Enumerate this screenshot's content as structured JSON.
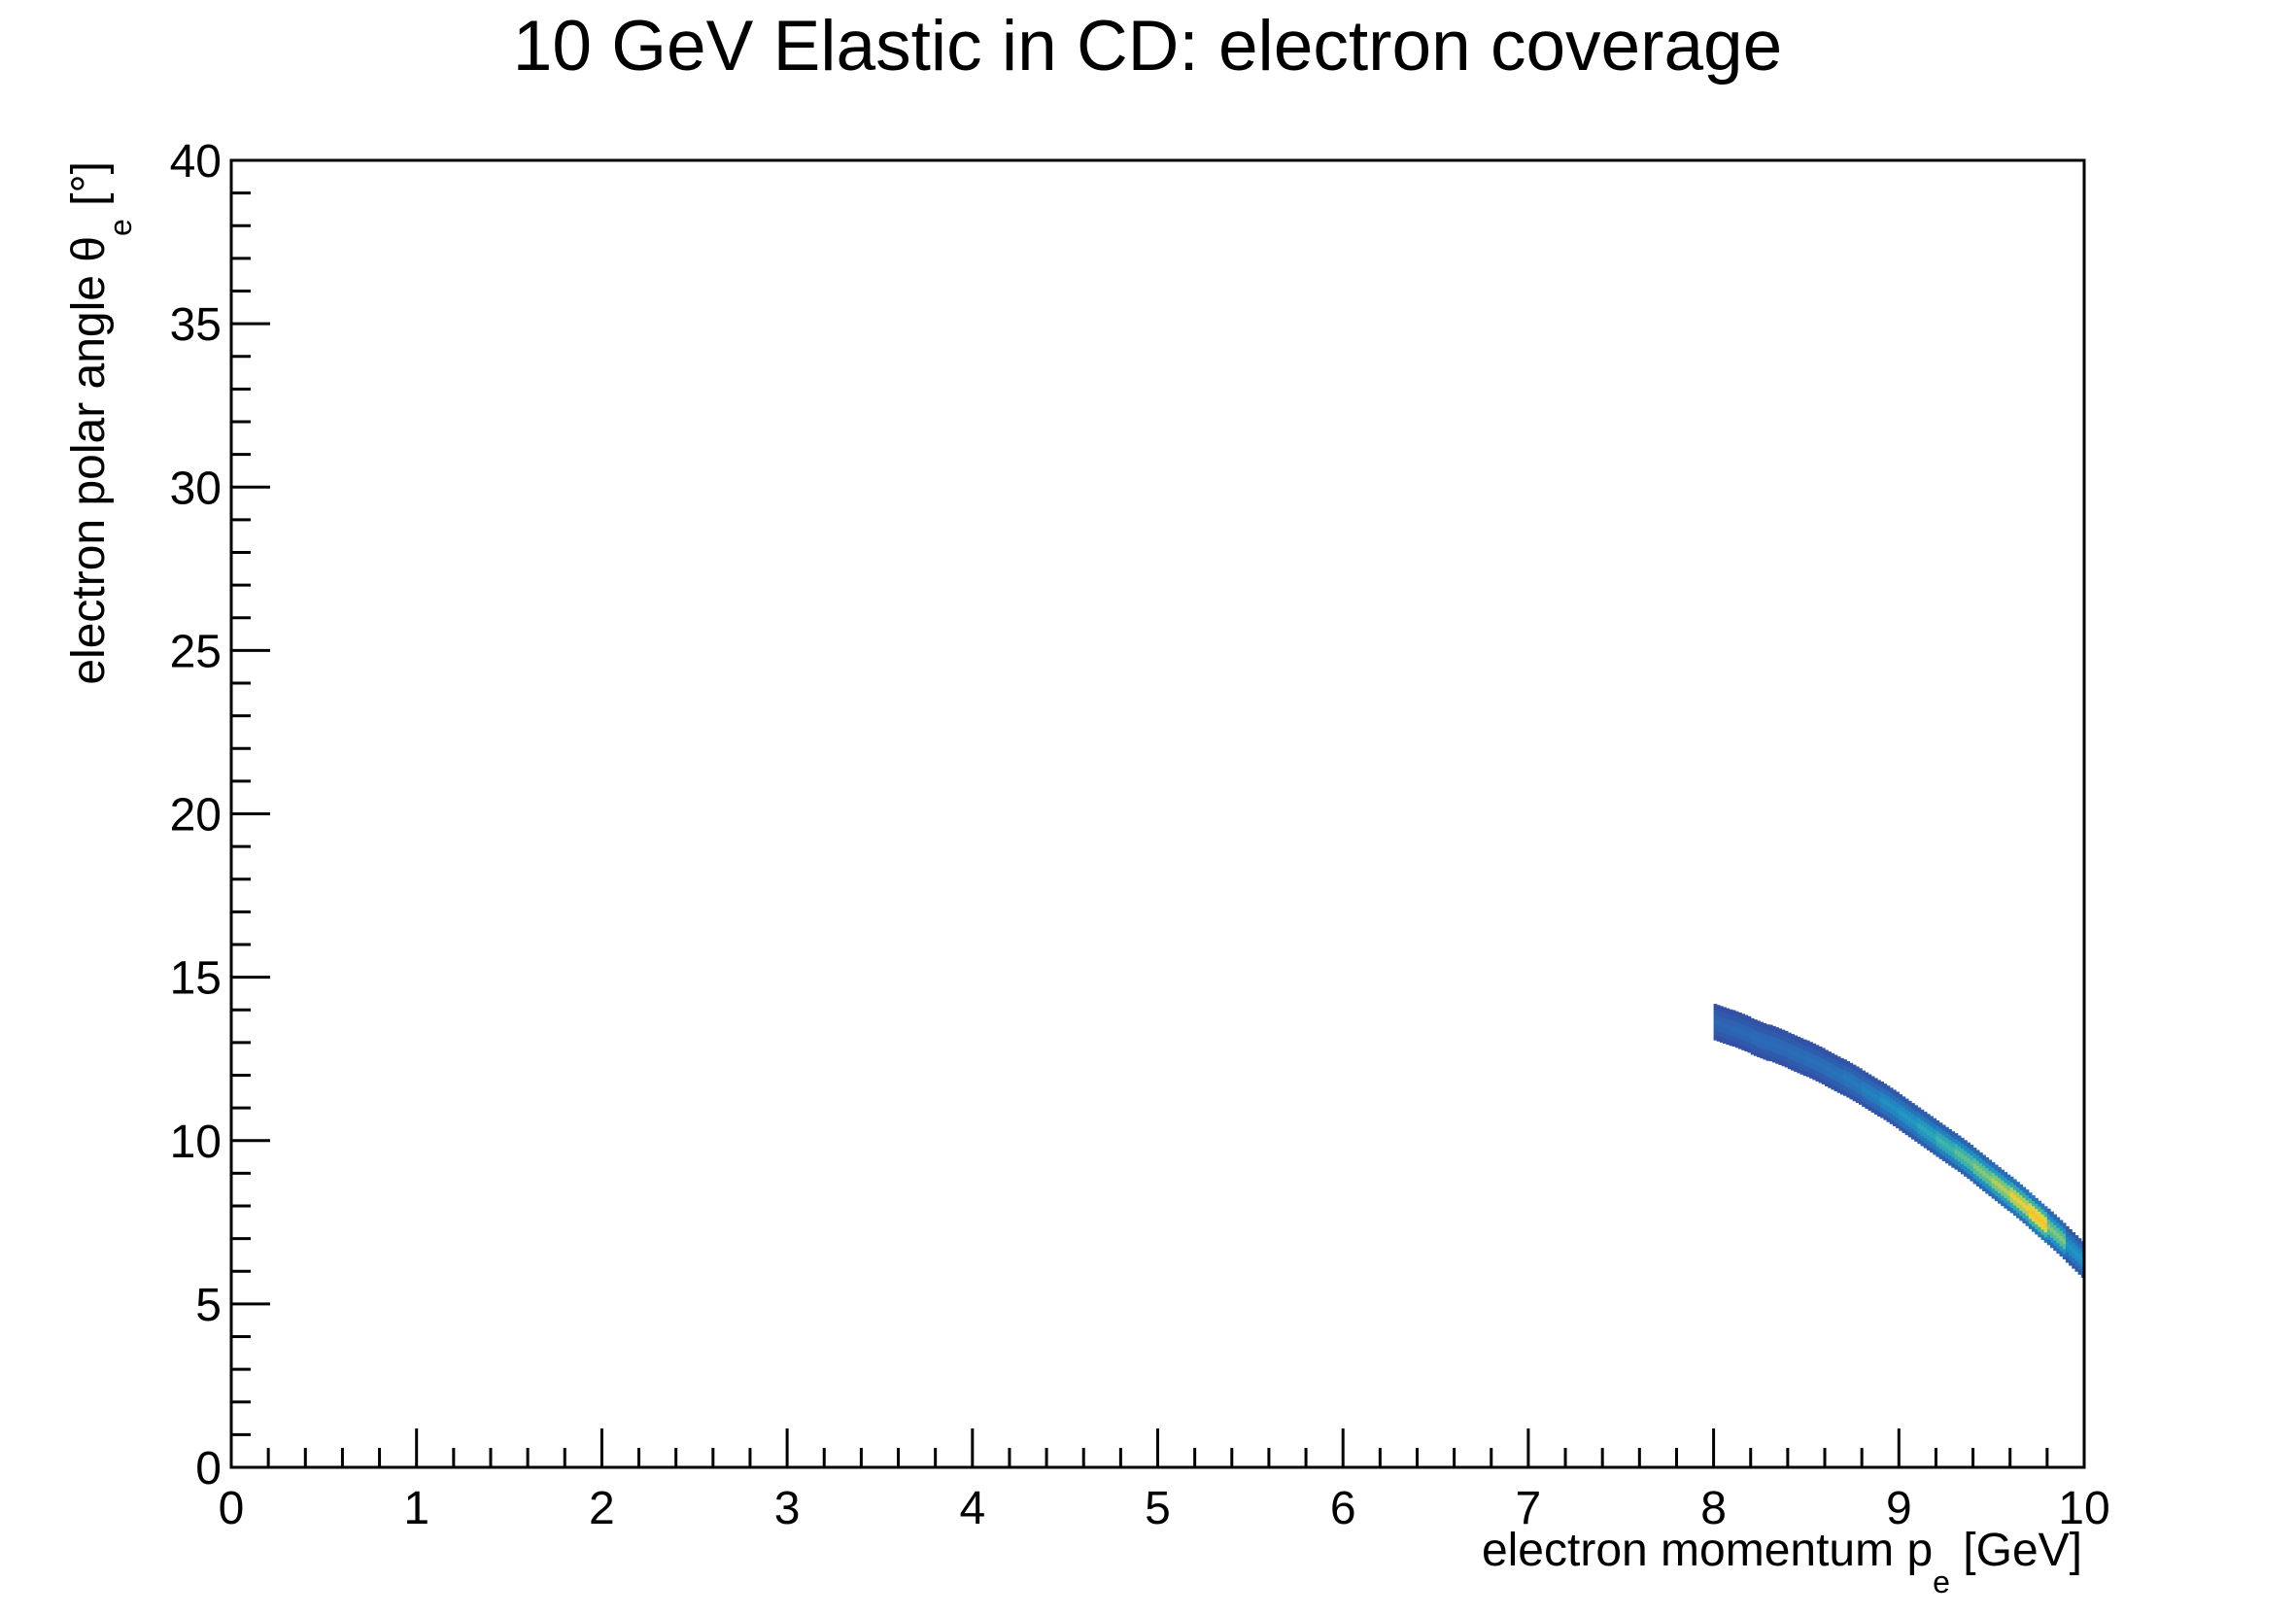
{
  "chart_data": {
    "type": "heatmap",
    "title": "10 GeV Elastic in CD: electron coverage",
    "xlabel": {
      "main": "electron momentum p",
      "sub": "e",
      "unit": " [GeV]"
    },
    "ylabel": {
      "main": "electron polar angle θ",
      "sub": "e",
      "unit": " [°]"
    },
    "xlim": [
      0,
      10
    ],
    "ylim": [
      0,
      40
    ],
    "x_ticks": [
      0,
      1,
      2,
      3,
      4,
      5,
      6,
      7,
      8,
      9,
      10
    ],
    "y_ticks": [
      0,
      5,
      10,
      15,
      20,
      25,
      30,
      35,
      40
    ],
    "grid": false,
    "legend": "none",
    "colormap": [
      "#35479f",
      "#2a6db8",
      "#1e94c4",
      "#3fb5a7",
      "#8fca6e",
      "#e6d23e",
      "#f7c22c"
    ],
    "note_values": "relative intensity (0-1) estimated from colour; distribution is a narrow band along the elastic kinematics",
    "cells": [
      {
        "p": 8.05,
        "theta": 13.55,
        "v": 0.12
      },
      {
        "p": 8.15,
        "theta": 13.35,
        "v": 0.13
      },
      {
        "p": 8.25,
        "theta": 13.1,
        "v": 0.14
      },
      {
        "p": 8.35,
        "theta": 12.9,
        "v": 0.14
      },
      {
        "p": 8.45,
        "theta": 12.65,
        "v": 0.15
      },
      {
        "p": 8.55,
        "theta": 12.4,
        "v": 0.16
      },
      {
        "p": 8.65,
        "theta": 12.1,
        "v": 0.17
      },
      {
        "p": 8.75,
        "theta": 11.8,
        "v": 0.2
      },
      {
        "p": 8.85,
        "theta": 11.45,
        "v": 0.24
      },
      {
        "p": 8.95,
        "theta": 11.1,
        "v": 0.3
      },
      {
        "p": 9.05,
        "theta": 10.7,
        "v": 0.34
      },
      {
        "p": 9.15,
        "theta": 10.3,
        "v": 0.4
      },
      {
        "p": 9.25,
        "theta": 9.9,
        "v": 0.48
      },
      {
        "p": 9.35,
        "theta": 9.5,
        "v": 0.55
      },
      {
        "p": 9.45,
        "theta": 9.05,
        "v": 0.63
      },
      {
        "p": 9.55,
        "theta": 8.6,
        "v": 0.72
      },
      {
        "p": 9.65,
        "theta": 8.15,
        "v": 0.84
      },
      {
        "p": 9.75,
        "theta": 7.65,
        "v": 0.97
      },
      {
        "p": 9.85,
        "theta": 7.15,
        "v": 0.62
      },
      {
        "p": 9.95,
        "theta": 6.6,
        "v": 0.32
      }
    ]
  }
}
